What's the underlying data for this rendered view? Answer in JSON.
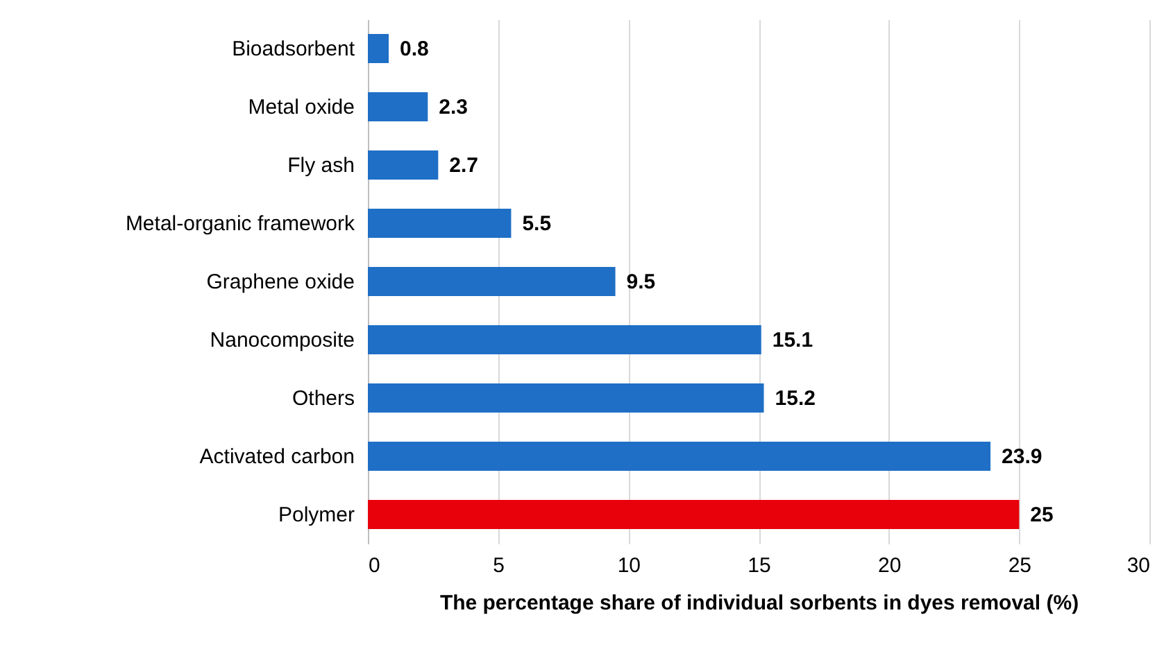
{
  "chart_data": {
    "type": "bar",
    "orientation": "horizontal",
    "xlabel": "The percentage share of individual sorbents in dyes removal (%)",
    "categories": [
      "Bioadsorbent",
      "Metal oxide",
      "Fly ash",
      "Metal-organic framework",
      "Graphene oxide",
      "Nanocomposite",
      "Others",
      "Activated carbon",
      "Polymer"
    ],
    "values": [
      0.8,
      2.3,
      2.7,
      5.5,
      9.5,
      15.1,
      15.2,
      23.9,
      25
    ],
    "colors": [
      "#1f6fc6",
      "#1f6fc6",
      "#1f6fc6",
      "#1f6fc6",
      "#1f6fc6",
      "#1f6fc6",
      "#1f6fc6",
      "#1f6fc6",
      "#e8000b"
    ],
    "xlim": [
      0,
      30
    ],
    "xticks": [
      0,
      5,
      10,
      15,
      20,
      25,
      30
    ],
    "grid": "x",
    "data_labels": true
  }
}
